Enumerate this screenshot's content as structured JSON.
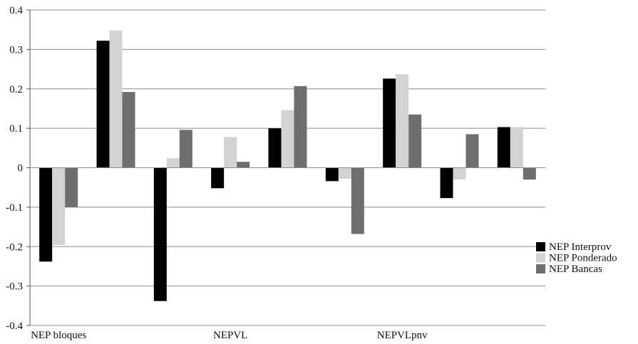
{
  "chart_data": {
    "type": "bar",
    "title": "",
    "xlabel": "",
    "ylabel": "",
    "ylim": [
      -0.4,
      0.4
    ],
    "yticks": [
      0.4,
      0.3,
      0.2,
      0.1,
      0,
      -0.1,
      -0.2,
      -0.3,
      -0.4
    ],
    "ytick_labels": [
      "0.4",
      "0.3",
      "0.2",
      "0.1",
      "0",
      "-0.1",
      "-0.2",
      "-0.3",
      "-0.4"
    ],
    "grid": true,
    "legend_position": "right",
    "categories": [
      "NEP bloques",
      "",
      "",
      "NEPVL",
      "",
      "",
      "NEPVLpnv",
      "",
      ""
    ],
    "series": [
      {
        "name": "NEP Interprov",
        "color": "#000000",
        "values": [
          -0.238,
          0.322,
          -0.338,
          -0.052,
          0.1,
          -0.034,
          0.226,
          -0.077,
          0.103
        ]
      },
      {
        "name": "NEP Ponderado",
        "color": "#d3d3d3",
        "values": [
          -0.196,
          0.348,
          0.024,
          0.078,
          0.146,
          -0.028,
          0.237,
          -0.03,
          0.103
        ]
      },
      {
        "name": "NEP Bancas",
        "color": "#6e6e6e",
        "values": [
          -0.1,
          0.192,
          0.096,
          0.015,
          0.207,
          -0.168,
          0.135,
          0.085,
          -0.03
        ]
      }
    ]
  }
}
